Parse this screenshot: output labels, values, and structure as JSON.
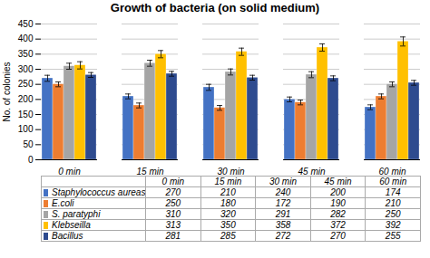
{
  "chart_data": {
    "type": "bar",
    "title": "Growth of bacteria (on solid medium)",
    "ylabel": "No. of colonies",
    "categories": [
      "0 min",
      "15 min",
      "30 min",
      "45 min",
      "60 min"
    ],
    "series": [
      {
        "name": "Staphylococcus aureas",
        "color": "#4472C4",
        "values": [
          270,
          210,
          240,
          200,
          174
        ],
        "errors": [
          10,
          8,
          10,
          8,
          8
        ]
      },
      {
        "name": "E.coli",
        "color": "#ED7D31",
        "values": [
          250,
          180,
          172,
          190,
          210
        ],
        "errors": [
          8,
          8,
          8,
          8,
          8
        ]
      },
      {
        "name": "S. paratyphi",
        "color": "#A5A5A5",
        "values": [
          310,
          320,
          291,
          282,
          250
        ],
        "errors": [
          10,
          10,
          10,
          10,
          8
        ]
      },
      {
        "name": "Klebseilla",
        "color": "#FFC000",
        "values": [
          313,
          350,
          358,
          372,
          392
        ],
        "errors": [
          12,
          12,
          12,
          12,
          15
        ]
      },
      {
        "name": "Bacillus",
        "color": "#2E4B8F",
        "values": [
          281,
          285,
          272,
          270,
          255
        ],
        "errors": [
          8,
          8,
          8,
          8,
          8
        ]
      }
    ],
    "ylim": [
      0,
      450
    ],
    "yticks": [
      0,
      50,
      100,
      150,
      200,
      250,
      300,
      350,
      400,
      450
    ],
    "grid": true,
    "legend": "bottom"
  }
}
